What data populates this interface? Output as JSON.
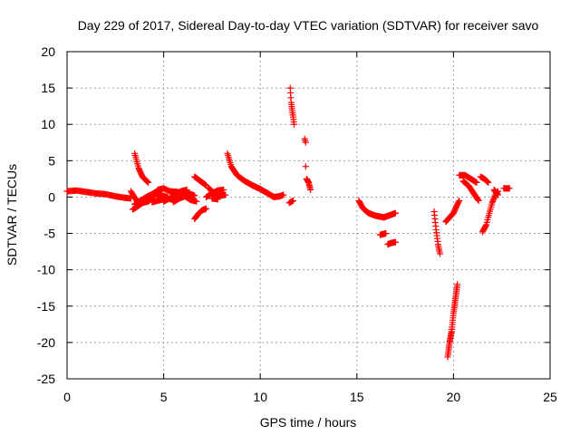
{
  "chart_data": {
    "type": "scatter",
    "title": "Day 229 of 2017, Sidereal Day-to-day VTEC variation (SDTVAR) for receiver savo",
    "xlabel": "GPS time / hours",
    "ylabel": "SDTVAR / TECUs",
    "xlim": [
      0,
      25
    ],
    "ylim": [
      -25,
      20
    ],
    "x_ticks": [
      0,
      5,
      10,
      15,
      20,
      25
    ],
    "y_ticks": [
      20,
      15,
      10,
      5,
      0,
      -5,
      -10,
      -15,
      -20,
      -25
    ],
    "x_tick_labels": [
      "0",
      "5",
      "10",
      "15",
      "20",
      "25"
    ],
    "y_tick_labels": [
      "20",
      "15",
      "10",
      "5",
      "0",
      "-5",
      "-10",
      "-15",
      "-20",
      "-25"
    ],
    "grid": true,
    "marker": "+",
    "color": "#ff0000",
    "series": [
      {
        "name": "SDTVAR",
        "segments": [
          {
            "points": [
              [
                0.0,
                0.8
              ],
              [
                0.5,
                0.9
              ],
              [
                1.0,
                0.7
              ],
              [
                1.5,
                0.5
              ],
              [
                2.0,
                0.4
              ],
              [
                2.5,
                0.1
              ],
              [
                3.0,
                -0.1
              ],
              [
                3.3,
                -0.2
              ]
            ],
            "step": 0.05
          },
          {
            "points": [
              [
                3.5,
                6.0
              ],
              [
                3.7,
                4.0
              ],
              [
                3.9,
                2.8
              ],
              [
                4.2,
                2.0
              ]
            ],
            "step": 0.03
          },
          {
            "points": [
              [
                3.3,
                0.8
              ],
              [
                3.6,
                -0.5
              ],
              [
                3.9,
                -0.8
              ],
              [
                4.2,
                -0.6
              ],
              [
                4.4,
                -0.2
              ]
            ],
            "step": 0.04
          },
          {
            "points": [
              [
                3.5,
                -1.0
              ],
              [
                3.8,
                -0.5
              ],
              [
                4.1,
                0.0
              ],
              [
                4.4,
                0.4
              ],
              [
                4.7,
                0.9
              ],
              [
                4.9,
                1.0
              ]
            ],
            "step": 0.04
          },
          {
            "points": [
              [
                3.4,
                -1.7
              ],
              [
                3.7,
                -1.2
              ],
              [
                4.0,
                -0.6
              ],
              [
                4.3,
                -0.2
              ]
            ],
            "step": 0.04
          },
          {
            "points": [
              [
                4.3,
                0.0
              ],
              [
                4.6,
                0.4
              ],
              [
                4.9,
                0.2
              ],
              [
                5.2,
                0.0
              ]
            ],
            "step": 0.04
          },
          {
            "points": [
              [
                4.4,
                -0.7
              ],
              [
                4.7,
                -0.5
              ],
              [
                5.0,
                -0.3
              ],
              [
                5.3,
                -0.2
              ],
              [
                5.5,
                -0.4
              ]
            ],
            "step": 0.04
          },
          {
            "points": [
              [
                4.7,
                1.0
              ],
              [
                5.0,
                1.2
              ],
              [
                5.3,
                0.8
              ],
              [
                5.7,
                0.7
              ],
              [
                6.1,
                0.6
              ]
            ],
            "step": 0.04
          },
          {
            "points": [
              [
                5.0,
                -0.6
              ],
              [
                5.3,
                -0.2
              ],
              [
                5.6,
                0.3
              ],
              [
                5.9,
                0.8
              ],
              [
                6.2,
                1.0
              ]
            ],
            "step": 0.04
          },
          {
            "points": [
              [
                5.5,
                -0.7
              ],
              [
                5.8,
                -0.2
              ],
              [
                6.1,
                0.1
              ],
              [
                6.4,
                -0.4
              ],
              [
                6.7,
                -0.6
              ]
            ],
            "step": 0.04
          },
          {
            "points": [
              [
                6.0,
                0.8
              ],
              [
                6.3,
                0.5
              ],
              [
                6.6,
                0.2
              ]
            ],
            "step": 0.04
          },
          {
            "points": [
              [
                6.6,
                2.8
              ],
              [
                6.9,
                2.2
              ],
              [
                7.2,
                1.6
              ]
            ],
            "step": 0.03
          },
          {
            "points": [
              [
                6.6,
                -3.0
              ],
              [
                6.8,
                -2.3
              ],
              [
                7.0,
                -1.8
              ],
              [
                7.2,
                -1.6
              ]
            ],
            "step": 0.03
          },
          {
            "points": [
              [
                7.3,
                1.3
              ],
              [
                7.6,
                0.6
              ],
              [
                7.9,
                0.2
              ],
              [
                8.2,
                0.3
              ]
            ],
            "step": 0.04
          },
          {
            "points": [
              [
                7.2,
                0.0
              ],
              [
                7.5,
                0.5
              ],
              [
                7.8,
                0.9
              ],
              [
                8.1,
                1.0
              ]
            ],
            "step": 0.04
          },
          {
            "points": [
              [
                7.5,
                -0.2
              ],
              [
                7.8,
                -0.3
              ]
            ],
            "step": 0.04
          },
          {
            "points": [
              [
                8.3,
                6.0
              ],
              [
                8.5,
                4.2
              ],
              [
                8.8,
                3.0
              ],
              [
                9.2,
                2.2
              ],
              [
                9.6,
                1.6
              ],
              [
                10.0,
                1.1
              ],
              [
                10.4,
                0.5
              ],
              [
                10.7,
                0.0
              ],
              [
                11.0,
                0.1
              ],
              [
                11.2,
                0.3
              ]
            ],
            "step": 0.03
          },
          {
            "points": [
              [
                11.5,
                -0.8
              ],
              [
                11.7,
                -0.5
              ]
            ],
            "step": 0.04
          },
          {
            "points": [
              [
                11.55,
                15.0
              ],
              [
                11.6,
                13.0
              ],
              [
                11.7,
                11.0
              ],
              [
                11.75,
                10.0
              ]
            ],
            "step": 0.015
          },
          {
            "points": [
              [
                12.3,
                8.0
              ],
              [
                12.35,
                7.5
              ]
            ],
            "step": 0.02
          },
          {
            "points": [
              [
                12.35,
                4.2
              ]
            ],
            "step": 0.02
          },
          {
            "points": [
              [
                12.4,
                2.5
              ],
              [
                12.5,
                2.0
              ],
              [
                12.6,
                1.0
              ]
            ],
            "step": 0.02
          },
          {
            "points": [
              [
                15.1,
                -0.5
              ],
              [
                15.3,
                -1.5
              ],
              [
                15.6,
                -2.2
              ],
              [
                16.0,
                -2.6
              ],
              [
                16.4,
                -2.8
              ],
              [
                16.8,
                -2.4
              ],
              [
                17.0,
                -2.2
              ]
            ],
            "step": 0.03
          },
          {
            "points": [
              [
                16.2,
                -5.2
              ],
              [
                16.5,
                -5.0
              ]
            ],
            "step": 0.03
          },
          {
            "points": [
              [
                16.6,
                -6.5
              ],
              [
                16.8,
                -6.3
              ],
              [
                17.0,
                -6.2
              ]
            ],
            "step": 0.03
          },
          {
            "points": [
              [
                19.0,
                -2.0
              ],
              [
                19.1,
                -4.5
              ],
              [
                19.2,
                -6.5
              ],
              [
                19.3,
                -7.8
              ]
            ],
            "step": 0.02
          },
          {
            "points": [
              [
                19.6,
                -3.4
              ],
              [
                19.8,
                -2.8
              ],
              [
                20.0,
                -2.2
              ],
              [
                20.2,
                -1.0
              ],
              [
                20.3,
                -0.5
              ]
            ],
            "step": 0.03
          },
          {
            "points": [
              [
                19.7,
                -22.0
              ],
              [
                19.8,
                -20.0
              ],
              [
                19.9,
                -18.5
              ],
              [
                20.0,
                -16.0
              ],
              [
                20.1,
                -14.0
              ],
              [
                20.2,
                -12.0
              ]
            ],
            "step": 0.012
          },
          {
            "points": [
              [
                20.3,
                3.0
              ],
              [
                20.6,
                3.0
              ],
              [
                20.9,
                2.5
              ],
              [
                21.2,
                2.0
              ]
            ],
            "step": 0.03
          },
          {
            "points": [
              [
                20.5,
                2.2
              ],
              [
                20.8,
                1.5
              ],
              [
                21.1,
                0.3
              ],
              [
                21.3,
                -0.5
              ]
            ],
            "step": 0.03
          },
          {
            "points": [
              [
                21.4,
                2.8
              ],
              [
                21.6,
                2.5
              ],
              [
                21.8,
                2.0
              ]
            ],
            "step": 0.03
          },
          {
            "points": [
              [
                21.5,
                -4.8
              ],
              [
                21.7,
                -3.8
              ],
              [
                21.8,
                -2.8
              ],
              [
                22.0,
                -0.8
              ],
              [
                22.2,
                0.5
              ],
              [
                22.3,
                0.8
              ]
            ],
            "step": 0.03
          },
          {
            "points": [
              [
                22.1,
                1.0
              ],
              [
                22.3,
                0.3
              ]
            ],
            "step": 0.03
          },
          {
            "points": [
              [
                22.6,
                1.2
              ],
              [
                22.9,
                1.2
              ]
            ],
            "step": 0.04
          }
        ]
      }
    ]
  }
}
